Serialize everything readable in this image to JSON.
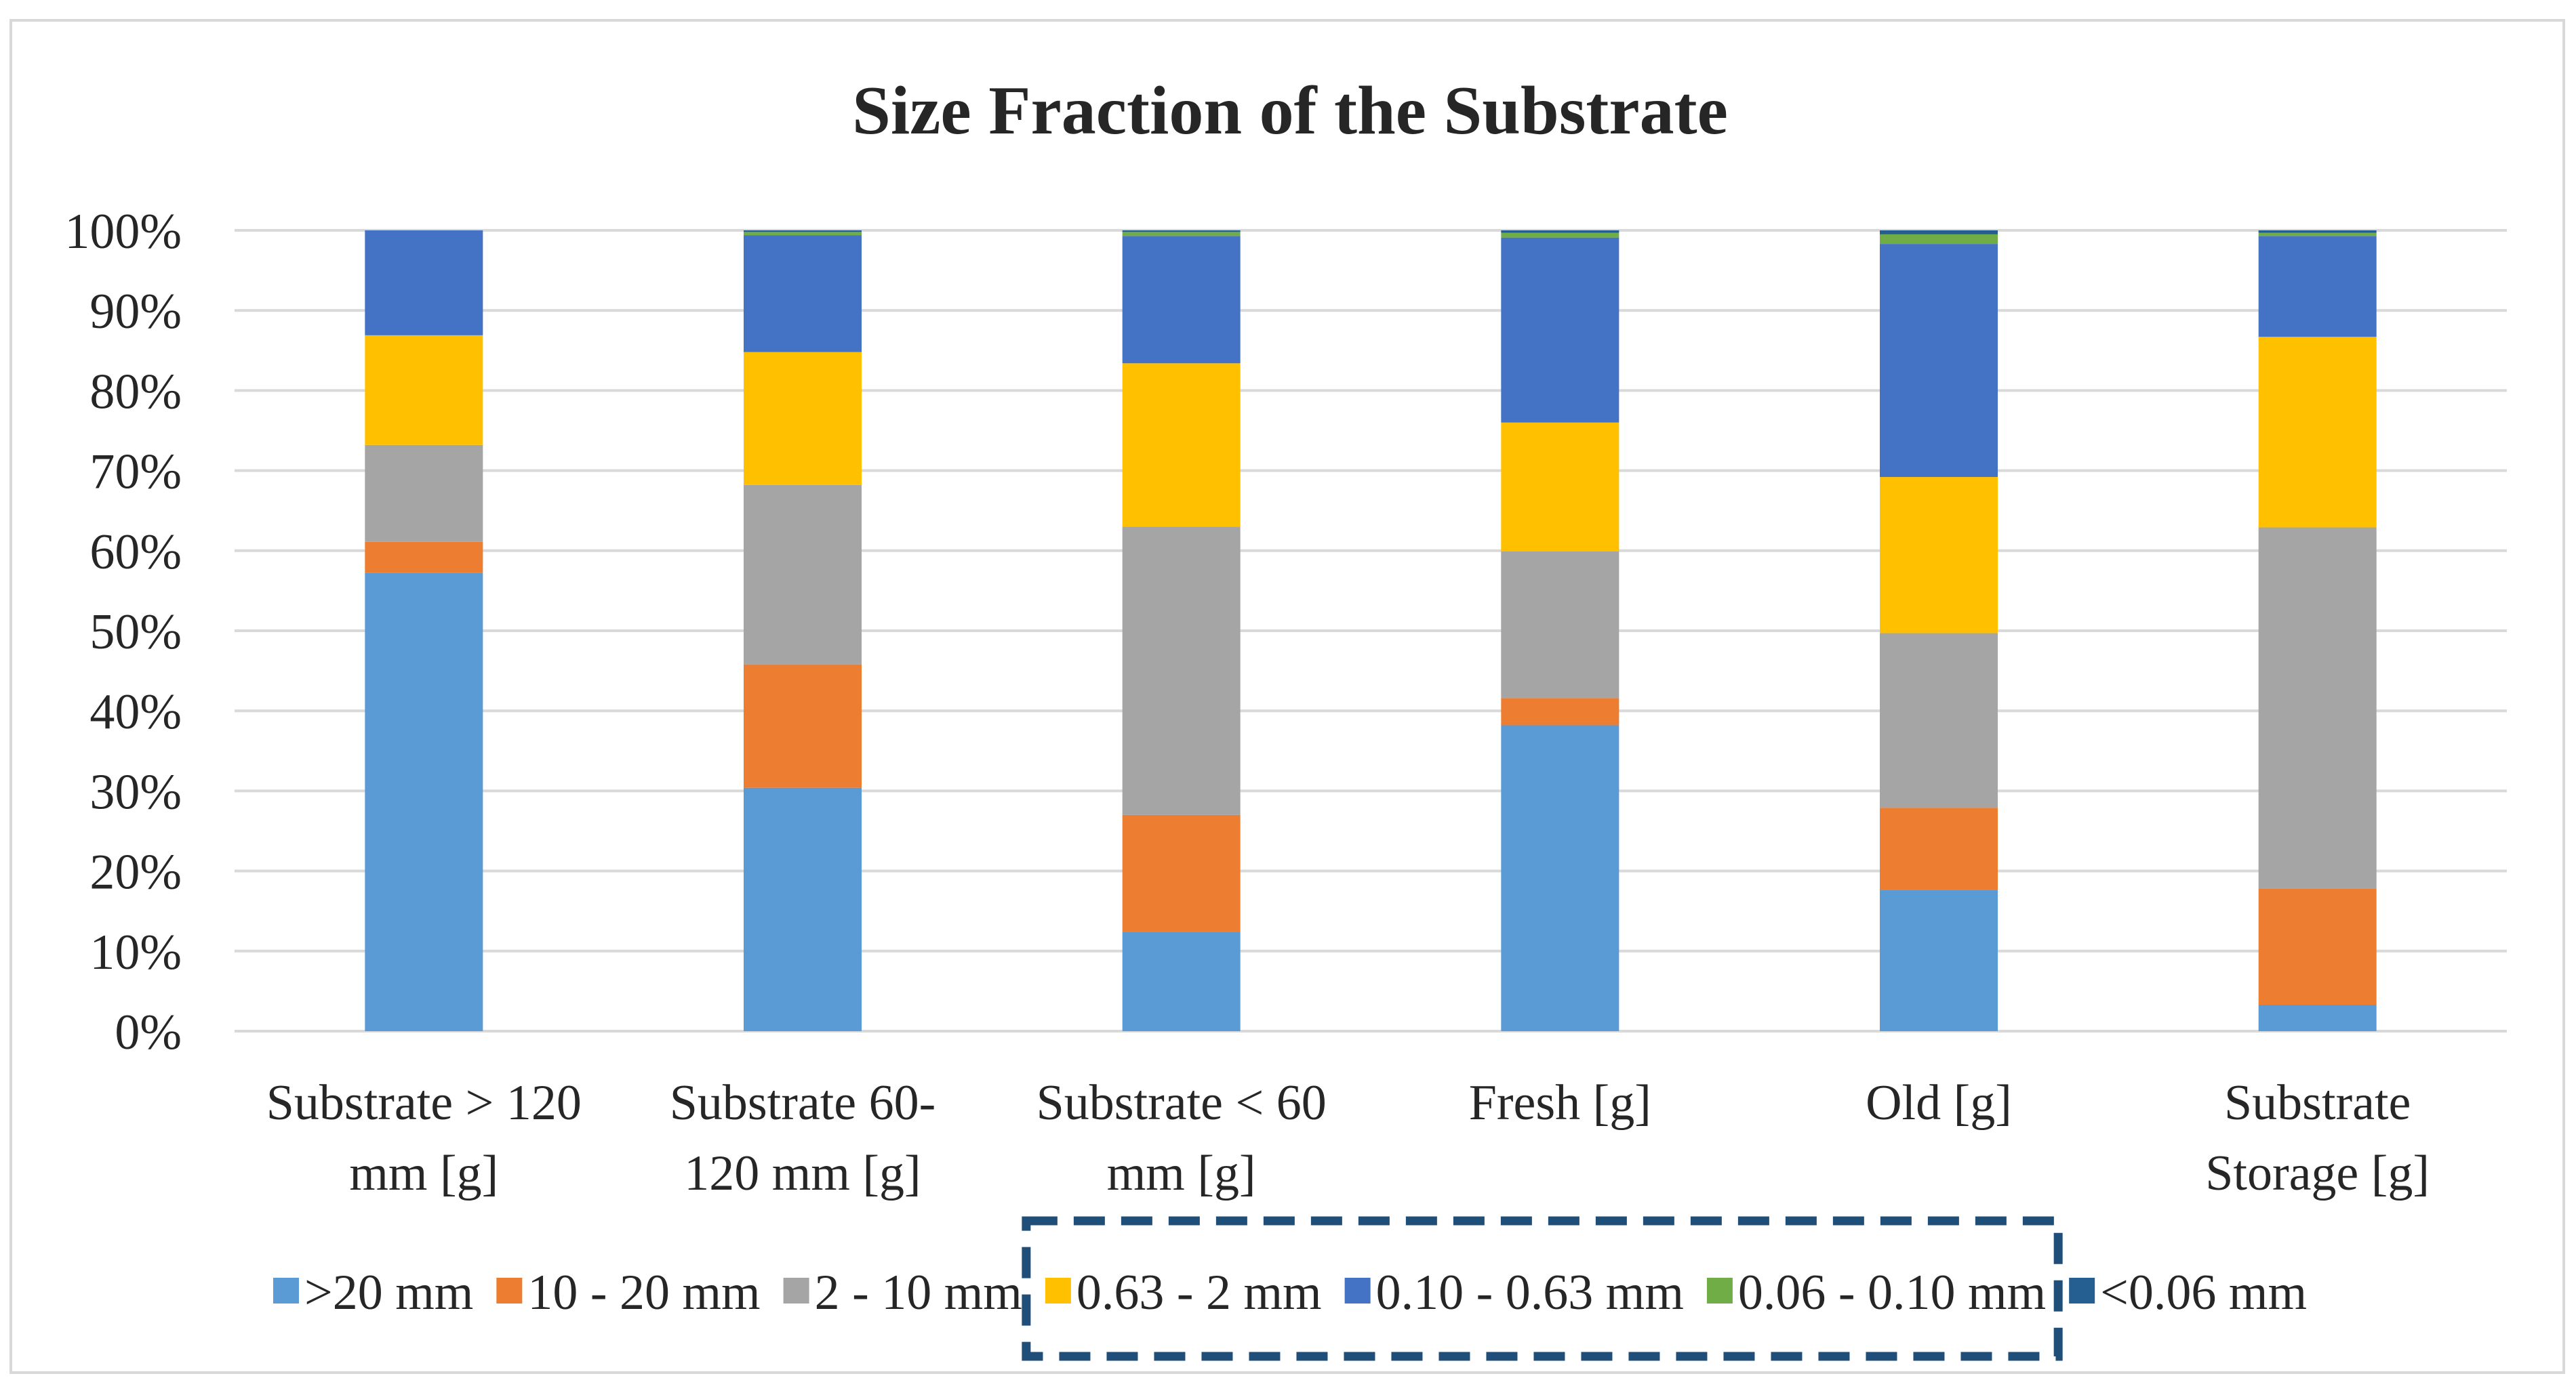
{
  "chart_data": {
    "type": "bar",
    "stacked": true,
    "percent": true,
    "title": "Size Fraction of the Substrate",
    "xlabel": "",
    "ylabel": "",
    "ylim": [
      0,
      100
    ],
    "yticks": [
      "0%",
      "10%",
      "20%",
      "30%",
      "40%",
      "50%",
      "60%",
      "70%",
      "80%",
      "90%",
      "100%"
    ],
    "categories": [
      [
        "Substrate > 120",
        "mm [g]"
      ],
      [
        "Substrate 60-",
        "120 mm [g]"
      ],
      [
        "Substrate < 60",
        "mm [g]"
      ],
      [
        "Fresh [g]"
      ],
      [
        "Old [g]"
      ],
      [
        "Substrate",
        "Storage [g]"
      ]
    ],
    "series": [
      {
        "name": ">20 mm",
        "color": "#5b9bd5",
        "values": [
          57.2,
          30.4,
          12.4,
          38.2,
          17.6,
          3.3
        ]
      },
      {
        "name": "10 - 20 mm",
        "color": "#ed7d31",
        "values": [
          3.9,
          15.4,
          14.6,
          3.4,
          10.3,
          14.5
        ]
      },
      {
        "name": "2 - 10 mm",
        "color": "#a5a5a5",
        "values": [
          12.1,
          22.4,
          36.0,
          18.3,
          21.8,
          45.1
        ]
      },
      {
        "name": "0.63 - 2 mm",
        "color": "#ffc000",
        "values": [
          13.7,
          16.6,
          20.4,
          16.1,
          19.5,
          23.8
        ]
      },
      {
        "name": "0.10 - 0.63 mm",
        "color": "#4472c4",
        "values": [
          13.1,
          14.6,
          15.9,
          23.1,
          29.1,
          12.6
        ]
      },
      {
        "name": "0.06 - 0.10 mm",
        "color": "#70ad47",
        "values": [
          0.0,
          0.4,
          0.5,
          0.6,
          1.2,
          0.4
        ]
      },
      {
        "name": "<0.06 mm",
        "color": "#255e91",
        "values": [
          0.0,
          0.2,
          0.2,
          0.3,
          0.5,
          0.3
        ]
      }
    ],
    "grid": true,
    "legend": "bottom",
    "annotations": [
      {
        "type": "dashed-box",
        "target": "legend entries 0.63 - 2 mm through 0.06 - 0.10 mm",
        "color": "#1f4e79"
      }
    ]
  }
}
